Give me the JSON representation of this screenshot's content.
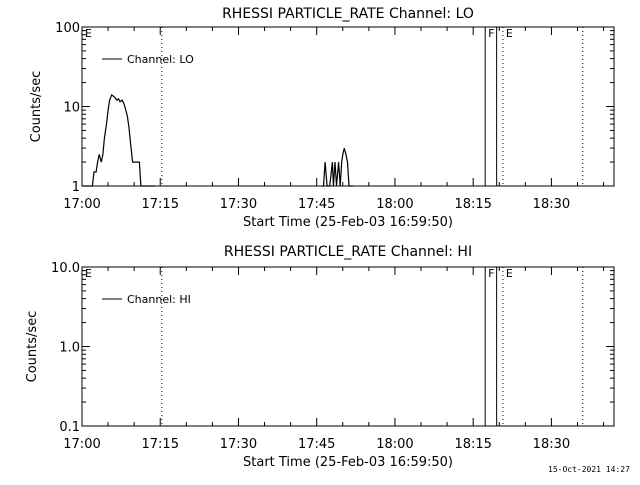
{
  "footer": {
    "timestamp": "15-Oct-2021 14:27"
  },
  "chart_data": [
    {
      "type": "line",
      "title": "RHESSI PARTICLE_RATE Channel: LO",
      "xlabel": "Start Time (25-Feb-03 16:59:50)",
      "ylabel": "Counts/sec",
      "yscale": "log",
      "ylim": [
        1,
        100
      ],
      "xlim": [
        "17:00",
        "18:42"
      ],
      "x_ticks": [
        "17:00",
        "17:15",
        "17:30",
        "17:45",
        "18:00",
        "18:15",
        "18:30"
      ],
      "y_ticks": [
        "1",
        "10",
        "100"
      ],
      "legend": {
        "entries": [
          "Channel: LO"
        ],
        "position": "top-left"
      },
      "markers": [
        {
          "label": "E",
          "time": "17:00",
          "style": "dotted"
        },
        {
          "label": "",
          "time": "17:15.3",
          "style": "dotted"
        },
        {
          "label": "F",
          "time": "18:17.3",
          "style": "solid"
        },
        {
          "label": "",
          "time": "18:19.5",
          "style": "solid"
        },
        {
          "label": "E",
          "time": "18:20.7",
          "style": "dotted"
        },
        {
          "label": "",
          "time": "18:36",
          "style": "dotted"
        }
      ],
      "series": [
        {
          "name": "Channel: LO",
          "points": [
            [
              "17:00.0",
              1
            ],
            [
              "17:01.0",
              1
            ],
            [
              "17:02.0",
              1
            ],
            [
              "17:02.3",
              1.5
            ],
            [
              "17:02.7",
              1.5
            ],
            [
              "17:03.0",
              2
            ],
            [
              "17:03.3",
              2.5
            ],
            [
              "17:03.7",
              2
            ],
            [
              "17:04.0",
              2.5
            ],
            [
              "17:04.3",
              4
            ],
            [
              "17:04.7",
              6
            ],
            [
              "17:05.0",
              9
            ],
            [
              "17:05.3",
              12
            ],
            [
              "17:05.7",
              14
            ],
            [
              "17:06.0",
              13.5
            ],
            [
              "17:06.3",
              13
            ],
            [
              "17:06.7",
              12
            ],
            [
              "17:07.0",
              12.5
            ],
            [
              "17:07.3",
              11.5
            ],
            [
              "17:07.7",
              12
            ],
            [
              "17:08.0",
              11
            ],
            [
              "17:08.3",
              9.5
            ],
            [
              "17:08.7",
              7.5
            ],
            [
              "17:09.0",
              5.5
            ],
            [
              "17:09.3",
              3.5
            ],
            [
              "17:09.7",
              2
            ],
            [
              "17:10.0",
              2
            ],
            [
              "17:10.3",
              2
            ],
            [
              "17:10.7",
              2
            ],
            [
              "17:11.0",
              2
            ],
            [
              "17:11.3",
              1
            ],
            [
              "17:12.0",
              1
            ],
            [
              "17:12.5",
              1
            ],
            [
              "17:13.0",
              1
            ],
            [
              "17:14.0",
              1
            ],
            [
              "17:46.0",
              1
            ],
            [
              "17:46.3",
              1
            ],
            [
              "17:46.6",
              2
            ],
            [
              "17:47.0",
              1
            ],
            [
              "17:47.5",
              1
            ],
            [
              "17:48.0",
              2
            ],
            [
              "17:48.2",
              1
            ],
            [
              "17:48.5",
              2
            ],
            [
              "17:48.8",
              1
            ],
            [
              "17:49.2",
              2
            ],
            [
              "17:49.5",
              1
            ],
            [
              "17:49.8",
              2
            ],
            [
              "17:50.0",
              2.5
            ],
            [
              "17:50.3",
              3
            ],
            [
              "17:50.6",
              2.5
            ],
            [
              "17:50.9",
              2
            ],
            [
              "17:51.2",
              1
            ],
            [
              "17:52.0",
              1
            ]
          ]
        }
      ]
    },
    {
      "type": "line",
      "title": "RHESSI PARTICLE_RATE Channel: HI",
      "xlabel": "Start Time (25-Feb-03 16:59:50)",
      "ylabel": "Counts/sec",
      "yscale": "log",
      "ylim": [
        0.1,
        10
      ],
      "xlim": [
        "17:00",
        "18:42"
      ],
      "x_ticks": [
        "17:00",
        "17:15",
        "17:30",
        "17:45",
        "18:00",
        "18:15",
        "18:30"
      ],
      "y_ticks": [
        "0.1",
        "1.0",
        "10.0"
      ],
      "legend": {
        "entries": [
          "Channel: HI"
        ],
        "position": "top-left"
      },
      "markers": [
        {
          "label": "E",
          "time": "17:00",
          "style": "dotted"
        },
        {
          "label": "",
          "time": "17:15.3",
          "style": "dotted"
        },
        {
          "label": "F",
          "time": "18:17.3",
          "style": "solid"
        },
        {
          "label": "",
          "time": "18:19.5",
          "style": "solid"
        },
        {
          "label": "E",
          "time": "18:20.7",
          "style": "dotted"
        },
        {
          "label": "",
          "time": "18:36",
          "style": "dotted"
        }
      ],
      "series": [
        {
          "name": "Channel: HI",
          "points": []
        }
      ]
    }
  ]
}
